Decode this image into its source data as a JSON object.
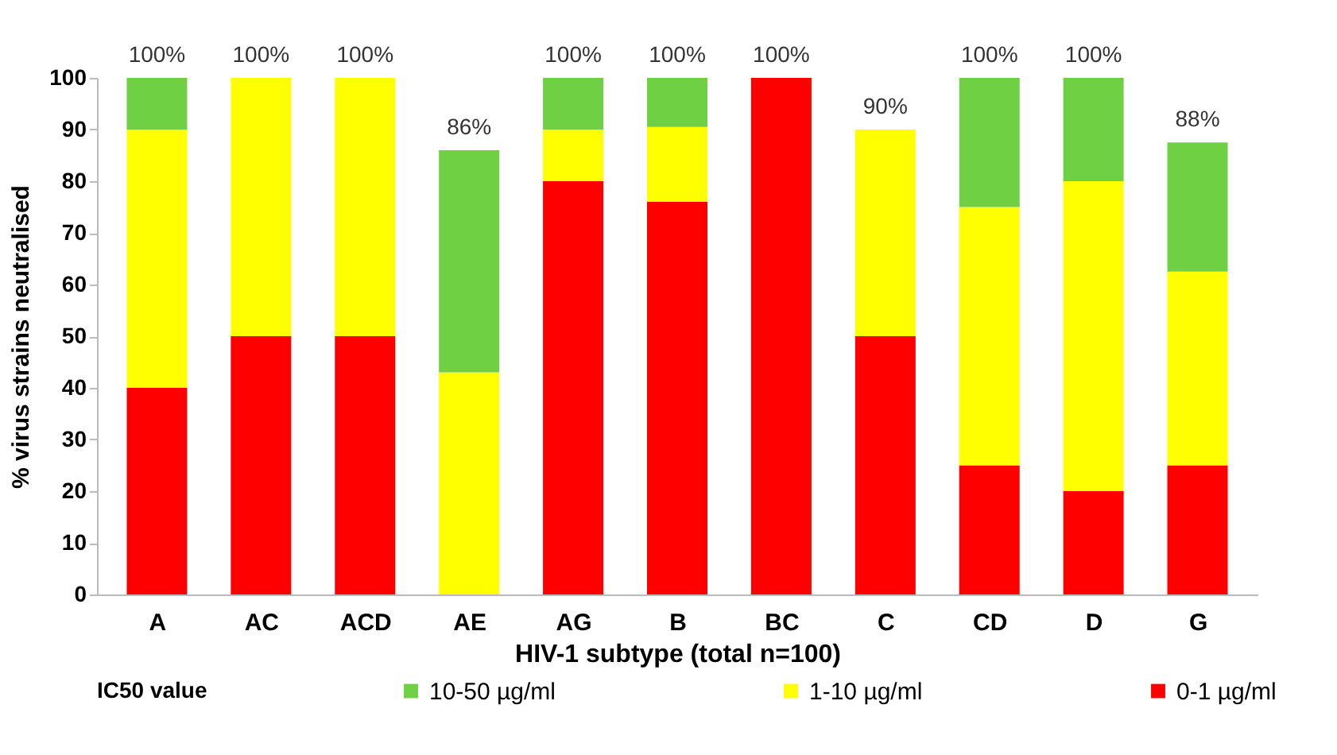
{
  "chart_data": {
    "type": "bar",
    "stacked": true,
    "categories": [
      "A",
      "AC",
      "ACD",
      "AE",
      "AG",
      "B",
      "BC",
      "C",
      "CD",
      "D",
      "G"
    ],
    "series": [
      {
        "name": "0-1 µg/ml",
        "color": "#ff0000",
        "values": [
          40,
          50,
          50,
          0,
          80,
          76,
          100,
          50,
          25,
          20,
          25
        ]
      },
      {
        "name": "1-10 µg/ml",
        "color": "#ffff00",
        "values": [
          50,
          50,
          50,
          43,
          10,
          14.5,
          0,
          40,
          50,
          60,
          37.5
        ]
      },
      {
        "name": "10-50 µg/ml",
        "color": "#70d044",
        "values": [
          10,
          0,
          0,
          43,
          10,
          9.5,
          0,
          0,
          25,
          20,
          25
        ]
      }
    ],
    "totals": [
      "100%",
      "100%",
      "100%",
      "86%",
      "100%",
      "100%",
      "100%",
      "90%",
      "100%",
      "100%",
      "88%"
    ],
    "xlabel": "HIV-1 subtype (total n=100)",
    "ylabel": "%  virus  strains neutralised",
    "legend_title": "IC50 value",
    "legend": "bottom",
    "ylim": [
      0,
      100
    ],
    "yticks": [
      0,
      10,
      20,
      30,
      40,
      50,
      60,
      70,
      80,
      90,
      100
    ],
    "grid": false
  }
}
